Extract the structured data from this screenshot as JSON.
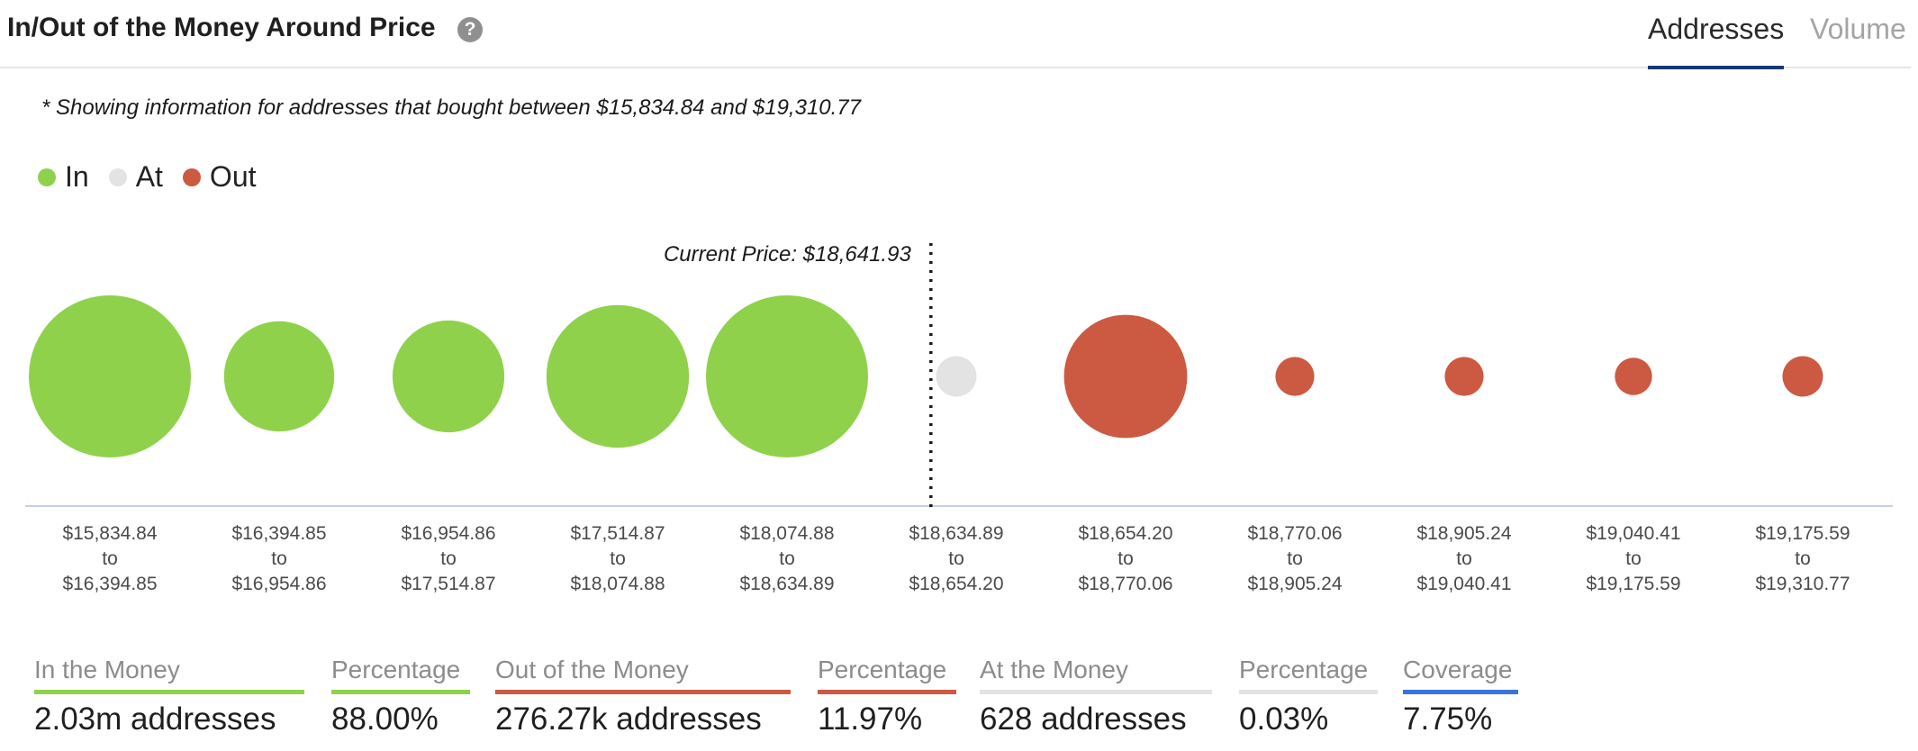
{
  "header": {
    "title": "In/Out of the Money Around Price",
    "help_icon": "question-circle-icon",
    "tabs": [
      {
        "label": "Addresses",
        "active": true
      },
      {
        "label": "Volume",
        "active": false
      }
    ]
  },
  "note": "* Showing information for addresses that bought between $15,834.84 and $19,310.77",
  "legend": [
    {
      "label": "In",
      "color": "#8fd14b"
    },
    {
      "label": "At",
      "color": "#e3e3e3"
    },
    {
      "label": "Out",
      "color": "#cc5941"
    }
  ],
  "chart_data": {
    "type": "bubble",
    "current_price_label": "Current Price: $18,641.93",
    "categories": [
      {
        "from": "$15,834.84",
        "to": "$16,394.85",
        "status": "In"
      },
      {
        "from": "$16,394.85",
        "to": "$16,954.86",
        "status": "In"
      },
      {
        "from": "$16,954.86",
        "to": "$17,514.87",
        "status": "In"
      },
      {
        "from": "$17,514.87",
        "to": "$18,074.88",
        "status": "In"
      },
      {
        "from": "$18,074.88",
        "to": "$18,634.89",
        "status": "In"
      },
      {
        "from": "$18,634.89",
        "to": "$18,654.20",
        "status": "At"
      },
      {
        "from": "$18,654.20",
        "to": "$18,770.06",
        "status": "Out"
      },
      {
        "from": "$18,770.06",
        "to": "$18,905.24",
        "status": "Out"
      },
      {
        "from": "$18,905.24",
        "to": "$19,040.41",
        "status": "Out"
      },
      {
        "from": "$19,040.41",
        "to": "$19,175.59",
        "status": "Out"
      },
      {
        "from": "$19,175.59",
        "to": "$19,310.77",
        "status": "Out"
      }
    ],
    "relative_size": [
      1.0,
      0.68,
      0.69,
      0.88,
      1.0,
      0.25,
      0.76,
      0.24,
      0.24,
      0.23,
      0.25
    ],
    "range_connector": "to",
    "colors": {
      "In": "#8fd14b",
      "At": "#e3e3e3",
      "Out": "#cc5941",
      "axis": "#c6d0e3",
      "divider": "#1a1a1a"
    }
  },
  "stats": [
    {
      "label": "In the Money",
      "value": "2.03m addresses",
      "color": "#8fd14b"
    },
    {
      "label": "Percentage",
      "value": "88.00%",
      "color": "#8fd14b"
    },
    {
      "label": "Out of the Money",
      "value": "276.27k addresses",
      "color": "#cc5941"
    },
    {
      "label": "Percentage",
      "value": "11.97%",
      "color": "#cc5941"
    },
    {
      "label": "At the Money",
      "value": "628 addresses",
      "color": "#e3e3e3"
    },
    {
      "label": "Percentage",
      "value": "0.03%",
      "color": "#e3e3e3"
    },
    {
      "label": "Coverage",
      "value": "7.75%",
      "color": "#3b73e0"
    }
  ]
}
